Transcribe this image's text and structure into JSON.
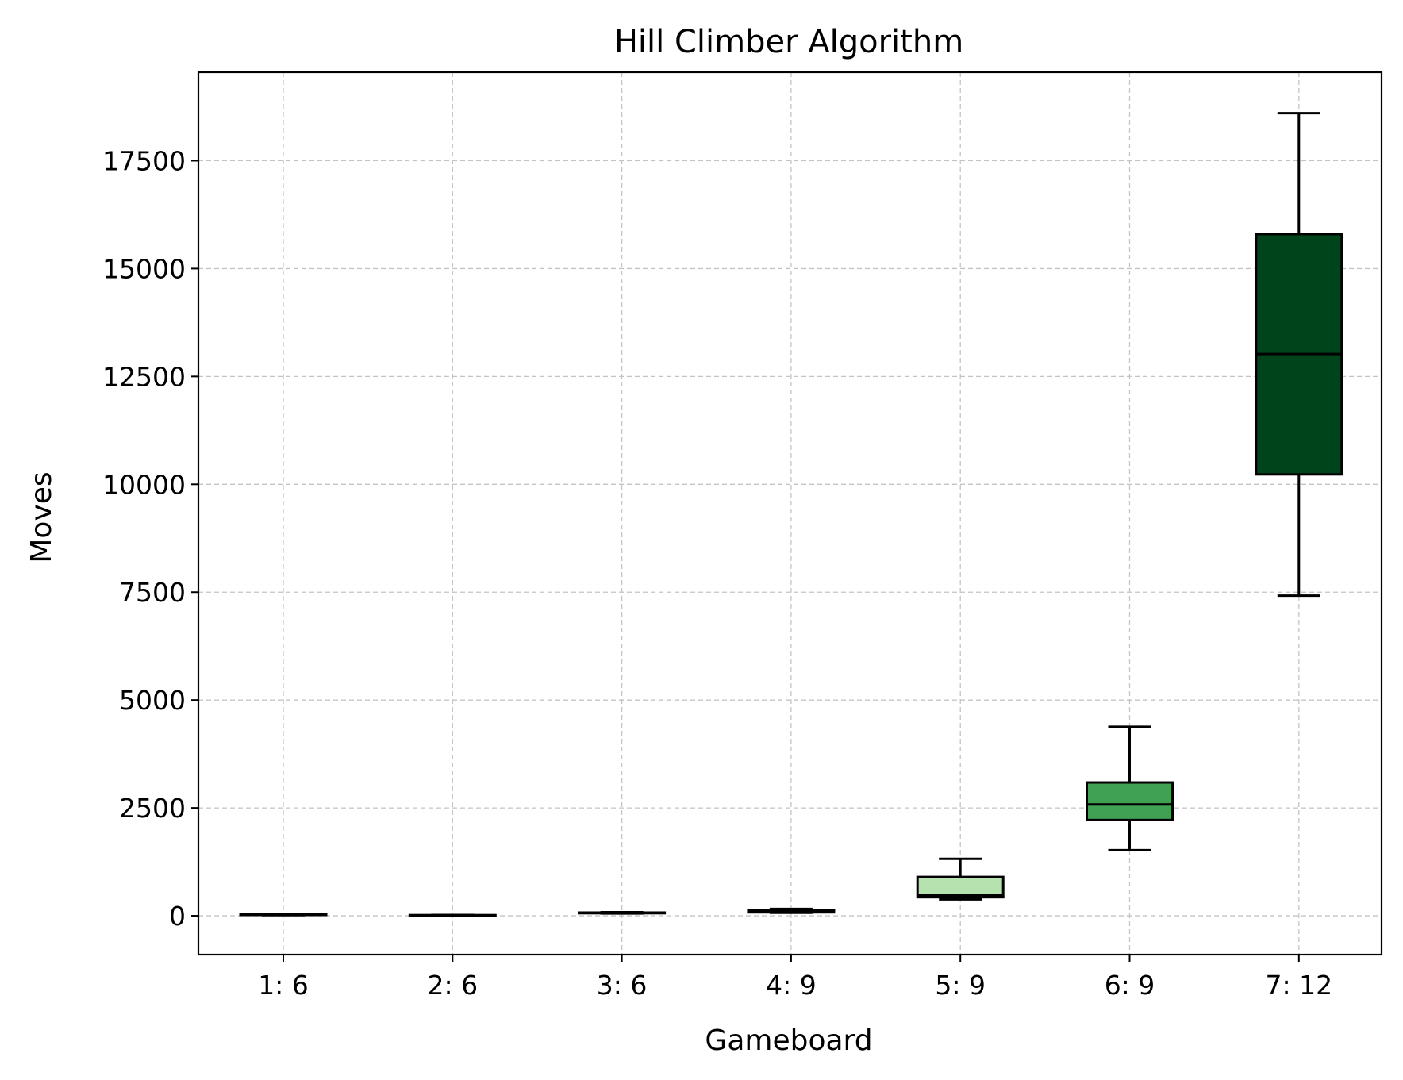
{
  "chart_data": {
    "type": "boxplot",
    "title": "Hill Climber Algorithm",
    "xlabel": "Gameboard",
    "ylabel": "Moves",
    "categories": [
      "1: 6",
      "2: 6",
      "3: 6",
      "4: 9",
      "5: 9",
      "6: 9",
      "7: 12"
    ],
    "yticks": [
      0,
      2500,
      5000,
      7500,
      10000,
      12500,
      15000,
      17500
    ],
    "ytick_labels": [
      "0",
      "2500",
      "5000",
      "7500",
      "10000",
      "12500",
      "15000",
      "17500"
    ],
    "ylim": [
      -900,
      19550
    ],
    "grid": true,
    "boxes": [
      {
        "category": "1: 6",
        "whislo": 15,
        "q1": 20,
        "med": 25,
        "q3": 35,
        "whishi": 45,
        "color": "#f7fcf5"
      },
      {
        "category": "2: 6",
        "whislo": 5,
        "q1": 10,
        "med": 12,
        "q3": 15,
        "whishi": 20,
        "color": "#e5f5e0"
      },
      {
        "category": "3: 6",
        "whislo": 55,
        "q1": 60,
        "med": 65,
        "q3": 75,
        "whishi": 85,
        "color": "#c7e9c0"
      },
      {
        "category": "4: 9",
        "whislo": 70,
        "q1": 80,
        "med": 100,
        "q3": 130,
        "whishi": 160,
        "color": "#a1d99b"
      },
      {
        "category": "5: 9",
        "whislo": 380,
        "q1": 430,
        "med": 470,
        "q3": 900,
        "whishi": 1320,
        "color": "#b5e2ae"
      },
      {
        "category": "6: 9",
        "whislo": 1520,
        "q1": 2220,
        "med": 2580,
        "q3": 3090,
        "whishi": 4380,
        "color": "#41a153"
      },
      {
        "category": "7: 12",
        "whislo": 7420,
        "q1": 10230,
        "med": 13020,
        "q3": 15800,
        "whishi": 18600,
        "color": "#00441b"
      }
    ]
  }
}
